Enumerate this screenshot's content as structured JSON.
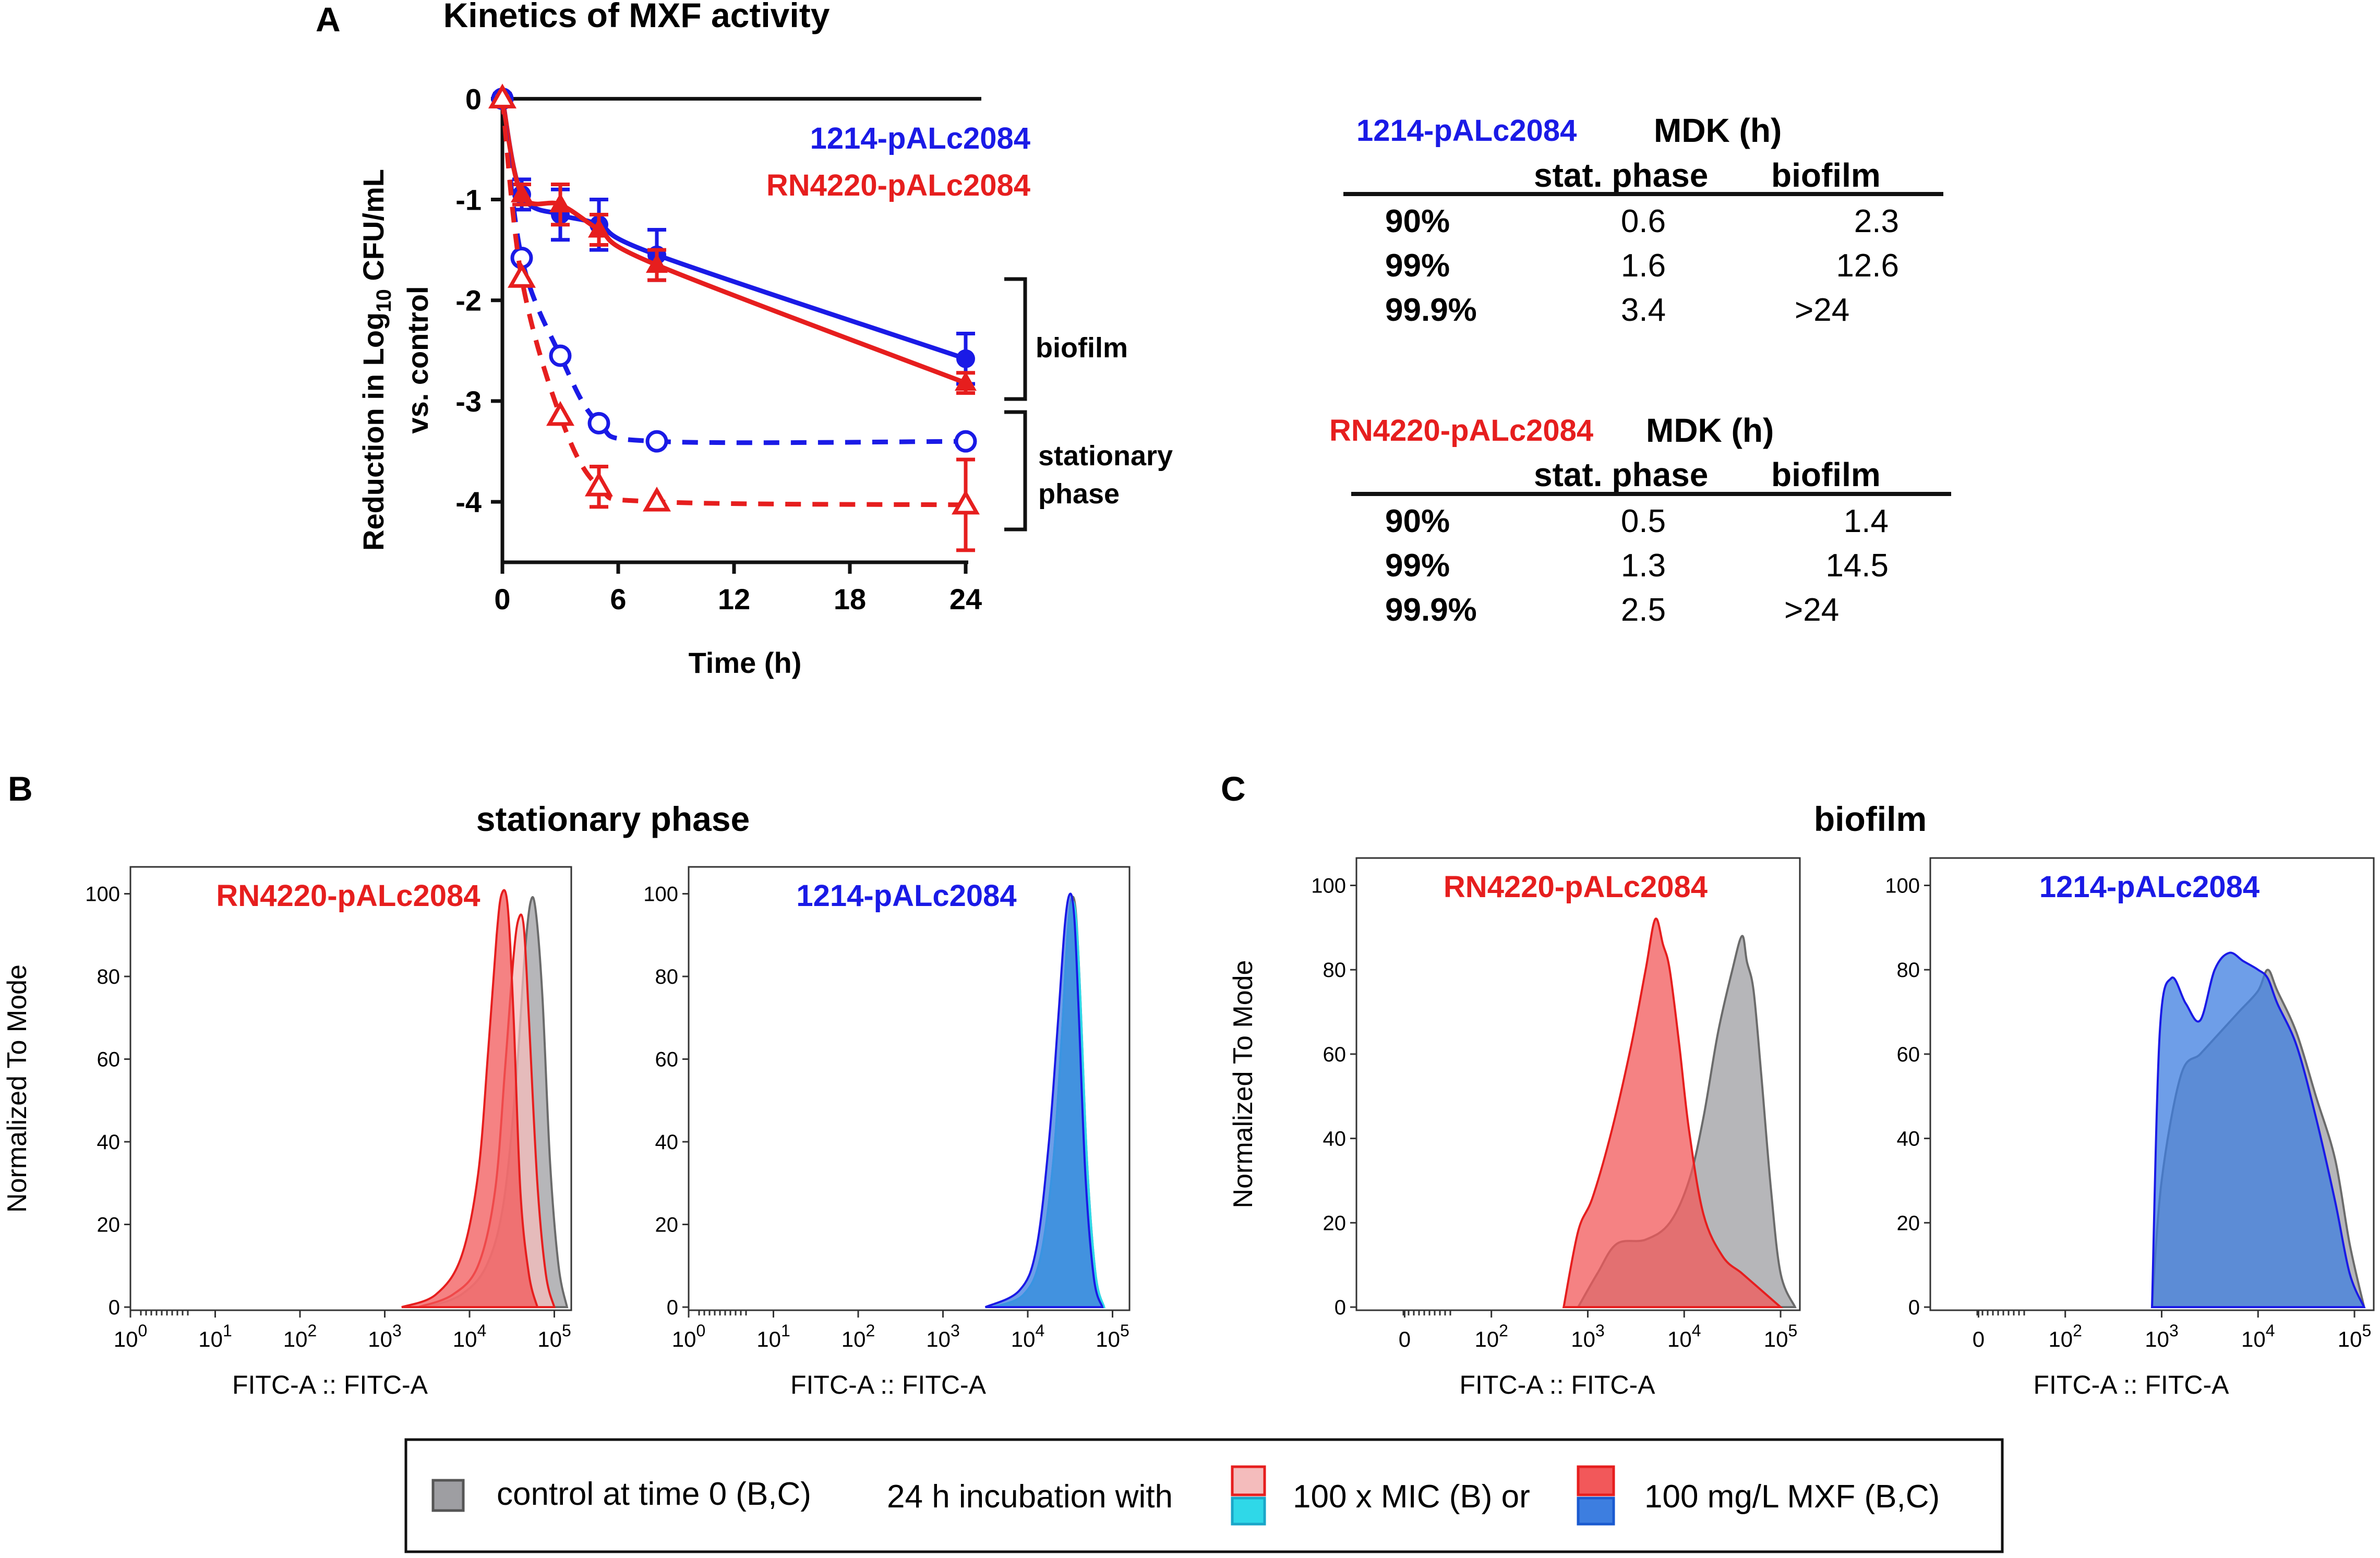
{
  "colors": {
    "blue": "#1a1ae6",
    "red": "#e61e1e",
    "control_fill": "#9e9ea2",
    "control_line": "#6b6b6b",
    "red_light": "#f4bcbc",
    "red_fill": "#f2585a",
    "cyan": "#2fd8e8",
    "blue_fill": "#3d7ee0",
    "overlap_blue": "#5f7fa8",
    "black": "#111111"
  },
  "panel_a": {
    "label": "A",
    "title": "Kinetics of MXF activity",
    "legend_1214": "1214-pALc2084",
    "legend_rn": "RN4220-pALc2084",
    "bracket_biofilm": "biofilm",
    "bracket_stationary_1": "stationary",
    "bracket_stationary_2": "phase"
  },
  "tables": {
    "t1": {
      "strain": "1214-pALc2084",
      "title": "MDK (h)",
      "col1": "stat. phase",
      "col2": "biofilm",
      "rows": [
        {
          "label": "90%",
          "stat": "0.6",
          "bio": "2.3"
        },
        {
          "label": "99%",
          "stat": "1.6",
          "bio": "12.6"
        },
        {
          "label": "99.9%",
          "stat": "3.4",
          "bio": ">24"
        }
      ]
    },
    "t2": {
      "strain": "RN4220-pALc2084",
      "title": "MDK (h)",
      "col1": "stat. phase",
      "col2": "biofilm",
      "rows": [
        {
          "label": "90%",
          "stat": "0.5",
          "bio": "1.4"
        },
        {
          "label": "99%",
          "stat": "1.3",
          "bio": "14.5"
        },
        {
          "label": "99.9%",
          "stat": "2.5",
          "bio": ">24"
        }
      ]
    }
  },
  "panel_b": {
    "label": "B",
    "title": "stationary phase"
  },
  "panel_c": {
    "label": "C",
    "title": "biofilm"
  },
  "legend": {
    "control": "control at time 0 (B,C)",
    "incubation": "24 h incubation with",
    "mic": "100 x MIC (B) or",
    "mxf": "100 mg/L MXF (B,C)"
  },
  "chart_data": [
    {
      "id": "kinetics",
      "type": "line",
      "title": "Kinetics of MXF activity",
      "xlabel": "Time (h)",
      "ylabel_line1": "Reduction in Log10 CFU/mL",
      "ylabel_line2": "vs. control",
      "xlim": [
        0,
        25
      ],
      "ylim": [
        -4.6,
        0.1
      ],
      "xticks": [
        0,
        6,
        12,
        18,
        24
      ],
      "yticks": [
        0,
        -1,
        -2,
        -3,
        -4
      ],
      "series": [
        {
          "name": "1214-pALc2084 biofilm",
          "color": "blue",
          "style": "solid",
          "marker": "filled-circle",
          "x": [
            0,
            1,
            3,
            5,
            8,
            24
          ],
          "y": [
            0,
            -0.95,
            -1.15,
            -1.25,
            -1.55,
            -2.58
          ],
          "err": [
            0.05,
            0.15,
            0.25,
            0.25,
            0.25,
            0.25
          ]
        },
        {
          "name": "RN4220-pALc2084 biofilm",
          "color": "red",
          "style": "solid",
          "marker": "filled-triangle",
          "x": [
            0,
            1,
            3,
            5,
            8,
            24
          ],
          "y": [
            0,
            -0.95,
            -1.05,
            -1.3,
            -1.65,
            -2.82
          ],
          "err": [
            0.05,
            0.1,
            0.2,
            0.15,
            0.15,
            0.1
          ]
        },
        {
          "name": "1214-pALc2084 stationary phase",
          "color": "blue",
          "style": "dashed",
          "marker": "open-circle",
          "x": [
            0,
            1,
            3,
            5,
            8,
            24
          ],
          "y": [
            0,
            -1.58,
            -2.55,
            -3.22,
            -3.4,
            -3.4
          ],
          "err": [
            0,
            0,
            0,
            0,
            0,
            0
          ]
        },
        {
          "name": "RN4220-pALc2084 stationary phase",
          "color": "red",
          "style": "dashed",
          "marker": "open-triangle",
          "x": [
            0,
            1,
            3,
            5,
            8,
            24
          ],
          "y": [
            0,
            -1.78,
            -3.15,
            -3.85,
            -4.0,
            -4.03
          ],
          "err": [
            0,
            0,
            0,
            0.2,
            0,
            0.45
          ]
        }
      ]
    },
    {
      "id": "hist-b-rn",
      "type": "area",
      "strain": "RN4220-pALc2084",
      "strain_color": "red",
      "ylabel": "Normalized To Mode",
      "xlabel": "FITC-A :: FITC-A",
      "x_tick_labels": [
        "10^0",
        "10^1",
        "10^2",
        "10^3",
        "10^4",
        "10^5"
      ],
      "y_tick_labels": [
        "0",
        "20",
        "40",
        "60",
        "80",
        "100"
      ],
      "x_range_log10": [
        0,
        5.2
      ],
      "ylim": [
        0,
        106
      ],
      "series": [
        {
          "name": "control at time 0",
          "fill": "control_fill",
          "stroke": "control_line",
          "x": [
            3.5,
            3.9,
            4.2,
            4.4,
            4.55,
            4.65,
            4.72,
            4.78,
            4.86,
            4.95,
            5.05,
            5.15
          ],
          "y": [
            0,
            3,
            10,
            25,
            55,
            85,
            98,
            96,
            75,
            35,
            10,
            0
          ]
        },
        {
          "name": "100 x MIC",
          "fill": "red_light",
          "stroke": "red",
          "x": [
            3.4,
            3.8,
            4.1,
            4.3,
            4.42,
            4.52,
            4.58,
            4.64,
            4.7,
            4.8,
            4.9,
            5.0
          ],
          "y": [
            0,
            3,
            10,
            28,
            58,
            85,
            94,
            92,
            70,
            30,
            8,
            0
          ]
        },
        {
          "name": "100 mg/L MXF",
          "fill": "red_fill",
          "stroke": "red",
          "x": [
            3.2,
            3.6,
            3.9,
            4.1,
            4.22,
            4.32,
            4.38,
            4.45,
            4.52,
            4.6,
            4.7,
            4.8
          ],
          "y": [
            0,
            3,
            12,
            32,
            62,
            90,
            100,
            97,
            70,
            28,
            8,
            0
          ]
        }
      ]
    },
    {
      "id": "hist-b-1214",
      "type": "area",
      "strain": "1214-pALc2084",
      "strain_color": "blue",
      "ylabel": "",
      "xlabel": "FITC-A :: FITC-A",
      "x_tick_labels": [
        "10^0",
        "10^1",
        "10^2",
        "10^3",
        "10^4",
        "10^5"
      ],
      "y_tick_labels": [
        "0",
        "20",
        "40",
        "60",
        "80",
        "100"
      ],
      "x_range_log10": [
        0,
        5.2
      ],
      "ylim": [
        0,
        106
      ],
      "series": [
        {
          "name": "control at time 0",
          "fill": "control_fill",
          "stroke": "control_line",
          "x": [
            3.6,
            3.95,
            4.15,
            4.3,
            4.4,
            4.47,
            4.52,
            4.57,
            4.62,
            4.7,
            4.8,
            4.9
          ],
          "y": [
            0,
            3,
            12,
            35,
            65,
            90,
            99,
            95,
            75,
            35,
            8,
            0
          ]
        },
        {
          "name": "100 x MIC",
          "fill": "cyan",
          "stroke": "cyan",
          "x": [
            3.6,
            3.95,
            4.15,
            4.3,
            4.4,
            4.47,
            4.52,
            4.57,
            4.62,
            4.7,
            4.8,
            4.9
          ],
          "y": [
            0,
            3,
            12,
            35,
            65,
            90,
            98,
            94,
            75,
            35,
            8,
            0
          ]
        },
        {
          "name": "100 mg/L MXF",
          "fill": "blue_fill",
          "stroke": "blue",
          "x": [
            3.5,
            3.9,
            4.1,
            4.25,
            4.36,
            4.44,
            4.5,
            4.55,
            4.6,
            4.68,
            4.78,
            4.88
          ],
          "y": [
            0,
            4,
            14,
            40,
            70,
            93,
            100,
            94,
            72,
            32,
            7,
            0
          ]
        }
      ]
    },
    {
      "id": "hist-c-rn",
      "type": "area",
      "strain": "RN4220-pALc2084",
      "strain_color": "red",
      "ylabel": "Normalized To Mode",
      "xlabel": "FITC-A :: FITC-A",
      "x_tick_labels": [
        "0",
        "10^2",
        "10^3",
        "10^4",
        "10^5"
      ],
      "y_tick_labels": [
        "0",
        "20",
        "40",
        "60",
        "80",
        "100"
      ],
      "x_range_log10": [
        0.6,
        5.2
      ],
      "ylim": [
        0,
        106
      ],
      "series": [
        {
          "name": "control at time 0",
          "fill": "control_fill",
          "stroke": "control_line",
          "x": [
            2.9,
            3.1,
            3.3,
            3.6,
            3.85,
            4.05,
            4.2,
            4.35,
            4.5,
            4.6,
            4.65,
            4.72,
            4.8,
            4.9,
            5.0,
            5.15
          ],
          "y": [
            0,
            8,
            15,
            16,
            20,
            30,
            45,
            65,
            80,
            88,
            82,
            75,
            55,
            28,
            8,
            0
          ]
        },
        {
          "name": "100 mg/L MXF",
          "fill": "red_fill",
          "stroke": "red",
          "x": [
            2.75,
            2.9,
            3.05,
            3.25,
            3.45,
            3.6,
            3.7,
            3.78,
            3.85,
            3.95,
            4.05,
            4.2,
            4.4,
            4.6,
            4.8,
            5.0
          ],
          "y": [
            0,
            18,
            26,
            42,
            62,
            80,
            92,
            86,
            80,
            62,
            42,
            22,
            12,
            8,
            4,
            0
          ]
        }
      ]
    },
    {
      "id": "hist-c-1214",
      "type": "area",
      "strain": "1214-pALc2084",
      "strain_color": "blue",
      "ylabel": "",
      "xlabel": "FITC-A :: FITC-A",
      "x_tick_labels": [
        "0",
        "10^2",
        "10^3",
        "10^4",
        "10^5"
      ],
      "y_tick_labels": [
        "0",
        "20",
        "40",
        "60",
        "80",
        "100"
      ],
      "x_range_log10": [
        0.6,
        5.2
      ],
      "ylim": [
        0,
        106
      ],
      "series": [
        {
          "name": "control at time 0",
          "fill": "control_fill",
          "stroke": "control_line",
          "x": [
            2.9,
            3.0,
            3.2,
            3.4,
            3.6,
            3.8,
            4.0,
            4.1,
            4.2,
            4.4,
            4.6,
            4.8,
            4.95,
            5.1
          ],
          "y": [
            0,
            30,
            55,
            60,
            65,
            70,
            75,
            80,
            75,
            65,
            50,
            35,
            15,
            0
          ]
        },
        {
          "name": "100 mg/L MXF",
          "fill": "blue_fill",
          "stroke": "blue",
          "x": [
            2.9,
            2.98,
            3.1,
            3.25,
            3.4,
            3.55,
            3.7,
            3.85,
            4.0,
            4.1,
            4.2,
            4.4,
            4.6,
            4.8,
            4.95,
            5.1
          ],
          "y": [
            0,
            65,
            78,
            72,
            68,
            80,
            84,
            82,
            80,
            78,
            72,
            62,
            45,
            25,
            8,
            0
          ]
        }
      ]
    }
  ]
}
